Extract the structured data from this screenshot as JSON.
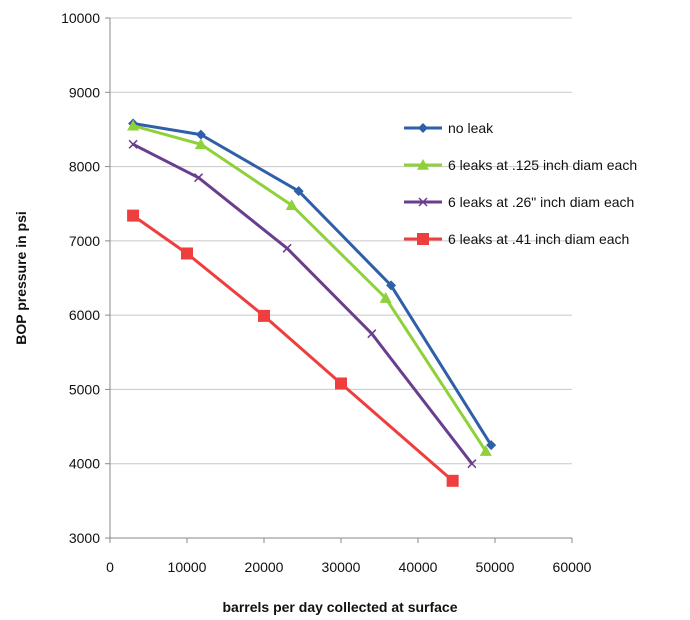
{
  "chart_data": {
    "type": "line",
    "title": "",
    "xlabel": "barrels per day collected at surface",
    "ylabel": "BOP pressure in psi",
    "xlim": [
      0,
      60000
    ],
    "ylim": [
      3000,
      10000
    ],
    "xticks": [
      0,
      10000,
      20000,
      30000,
      40000,
      50000,
      60000
    ],
    "yticks": [
      3000,
      4000,
      5000,
      6000,
      7000,
      8000,
      9000,
      10000
    ],
    "grid": "horizontal",
    "legend": "right",
    "series": [
      {
        "name": "no leak",
        "color": "#2E5FA8",
        "marker": "diamond",
        "x": [
          3000,
          11800,
          24500,
          36500,
          49500
        ],
        "y": [
          8580,
          8430,
          7670,
          6400,
          4250
        ]
      },
      {
        "name": "6 leaks at .125 inch diam each",
        "color": "#8FD13A",
        "marker": "triangle",
        "x": [
          3000,
          11800,
          23600,
          35800,
          48800
        ],
        "y": [
          8550,
          8300,
          7480,
          6230,
          4170
        ]
      },
      {
        "name": "6 leaks at .26\" inch diam each",
        "color": "#6A3E8E",
        "marker": "x",
        "x": [
          3000,
          11500,
          23000,
          34000,
          47000
        ],
        "y": [
          8300,
          7850,
          6900,
          5750,
          4000
        ]
      },
      {
        "name": "6 leaks at .41 inch diam each",
        "color": "#EE3E3E",
        "marker": "square",
        "x": [
          3000,
          10000,
          20000,
          30000,
          44500
        ],
        "y": [
          7340,
          6830,
          5990,
          5080,
          3770
        ]
      }
    ]
  }
}
